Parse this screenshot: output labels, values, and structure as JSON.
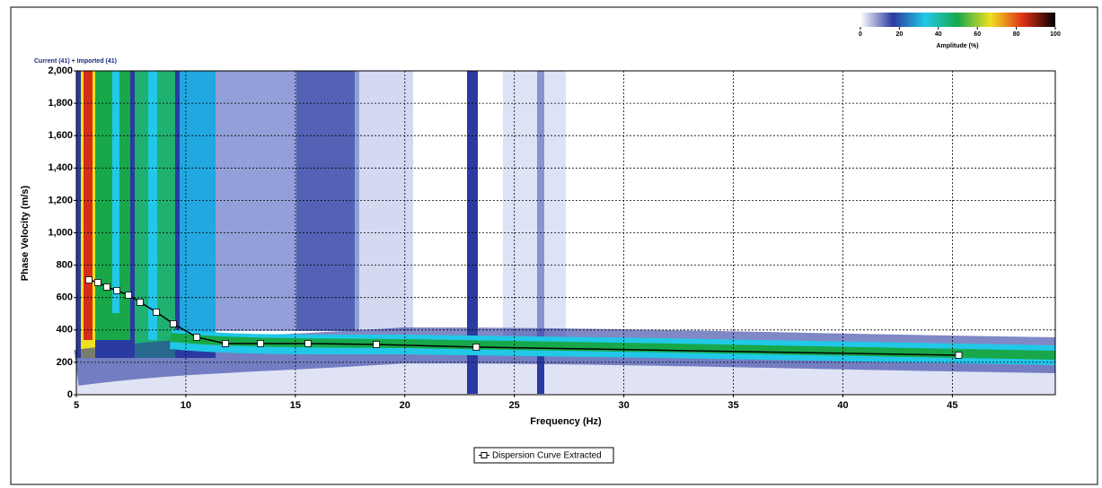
{
  "chart_data": {
    "type": "line",
    "subtitle": "Current (41) + Imported (41)",
    "xlabel": "Frequency (Hz)",
    "ylabel": "Phase Velocity (m/s)",
    "xlim": [
      5,
      49.7
    ],
    "ylim": [
      0,
      2000
    ],
    "xticks": [
      5,
      10,
      15,
      20,
      25,
      30,
      35,
      40,
      45
    ],
    "yticks": [
      0,
      200,
      400,
      600,
      800,
      {
        "value": 1000,
        "label": "1,000"
      },
      {
        "value": 1200,
        "label": "1,200"
      },
      {
        "value": 1400,
        "label": "1,400"
      },
      {
        "value": 1600,
        "label": "1,600"
      },
      {
        "value": 1800,
        "label": "1,800"
      },
      {
        "value": 2000,
        "label": "2,000"
      }
    ],
    "grid": true,
    "series": [
      {
        "name": "Dispersion Curve Extracted",
        "color": "#000000",
        "x": [
          5.57,
          5.98,
          6.39,
          6.85,
          7.38,
          7.91,
          8.65,
          9.43,
          10.5,
          11.81,
          13.41,
          15.58,
          18.7,
          23.26,
          45.29
        ],
        "values": [
          709,
          693,
          665,
          643,
          615,
          571,
          510,
          438,
          355,
          316,
          316,
          316,
          310,
          294,
          244
        ]
      }
    ],
    "colorbar": {
      "label": "Amplitude (%)",
      "lim": [
        0,
        100
      ],
      "ticks": [
        0,
        20,
        40,
        60,
        80,
        100
      ],
      "colors": [
        "#ffffff",
        "#2b3aa0",
        "#21c8e8",
        "#18a84a",
        "#f0e020",
        "#e03018",
        "#000000"
      ]
    }
  }
}
